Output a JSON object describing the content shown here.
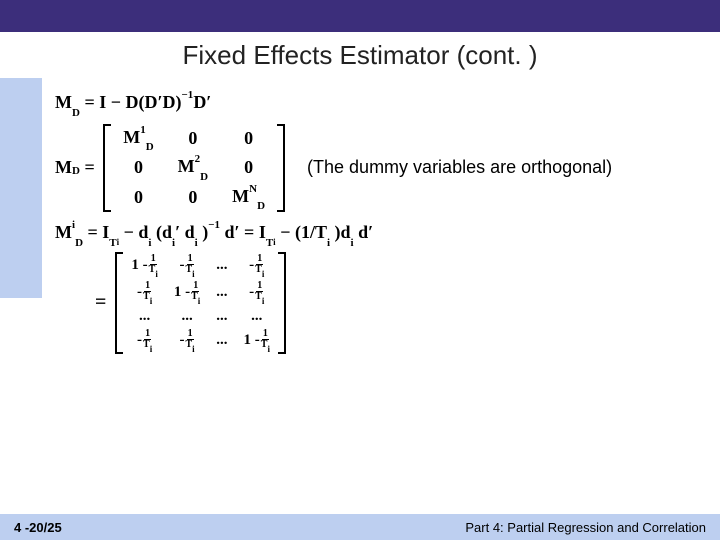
{
  "colors": {
    "topbar": "#3c2e7b",
    "leftstrip": "#bdcff0",
    "footer": "#bdcff0"
  },
  "title": "Fixed Effects Estimator (cont. )",
  "note": "(The dummy variables are orthogonal)",
  "footer": {
    "page": "4 -20/25",
    "part": "Part 4: Partial Regression and Correlation"
  },
  "eq1": {
    "lhs": "M",
    "lhs_sub": "D",
    "rhs": " =  I − D(D′D)",
    "rhs_sup": "−1",
    "rhs_tail": "D′"
  },
  "block": {
    "type": "matrix",
    "rows": 3,
    "cols": 3,
    "lead": "M",
    "lead_sub": "D",
    "cells": [
      [
        "MD1",
        "0",
        "0"
      ],
      [
        "0",
        "MD2",
        "0"
      ],
      [
        "0",
        "0",
        "MDN"
      ]
    ]
  },
  "eq3": {
    "a": "M",
    "a_sup": "i",
    "a_sub": "D",
    "b": " = I",
    "b_sub": "T",
    "b_subs": "i",
    "c": " − d",
    "c_sub": "i",
    "d": "(d",
    "d_sub": "i",
    "d_prime": "′",
    "e": "d",
    "e_sub": "i",
    "f": ")",
    "f_sup": "−1",
    "g": "d′ = I",
    "g_sub": "T",
    "g_subs": "i",
    "h": " − (1/T",
    "h_sub": "i",
    "i": ")d",
    "i_sub": "i",
    "j": "d′"
  },
  "fracmat": {
    "type": "matrix",
    "rows": 4,
    "cols": 4,
    "cells": [
      [
        "1-1/Ti",
        "-1/Ti",
        "...",
        "-1/Ti"
      ],
      [
        "-1/Ti",
        "1-1/Ti",
        "...",
        "-1/Ti"
      ],
      [
        "...",
        "...",
        "...",
        "..."
      ],
      [
        "-1/Ti",
        "-1/Ti",
        "...",
        "1-1/Ti"
      ]
    ]
  },
  "glyph": {
    "MD1": {
      "sup": "1"
    },
    "MD2": {
      "sup": "2"
    },
    "MDN": {
      "sup": "N"
    }
  }
}
